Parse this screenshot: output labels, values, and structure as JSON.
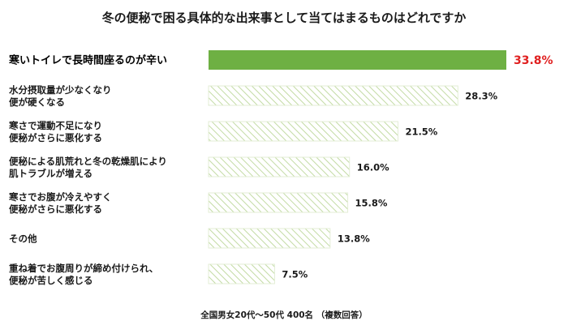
{
  "chart_data": {
    "type": "bar",
    "orientation": "horizontal",
    "title": "冬の便秘で困る具体的な出来事として当てはまるものはどれですか",
    "categories": [
      [
        "寒いトイレで長時間座るのが辛い"
      ],
      [
        "水分摂取量が少なくなり",
        "便が硬くなる"
      ],
      [
        "寒さで運動不足になり",
        "便秘がさらに悪化する"
      ],
      [
        "便秘による肌荒れと冬の乾燥肌により",
        "肌トラブルが増える"
      ],
      [
        "寒さでお腹が冷えやすく",
        "便秘がさらに悪化する"
      ],
      [
        "その他"
      ],
      [
        "重ね着でお腹周りが締め付けられ、",
        "便秘が苦しく感じる"
      ]
    ],
    "values": [
      33.8,
      28.3,
      21.5,
      16.0,
      15.8,
      13.8,
      7.5
    ],
    "value_labels": [
      "33.8%",
      "28.3%",
      "21.5%",
      "16.0%",
      "15.8%",
      "13.8%",
      "7.5%"
    ],
    "highlight_index": 0,
    "xlim": [
      0,
      33.8
    ],
    "grid": false,
    "legend": "none",
    "footnote": "全国男女20代～50代 400名 （複数回答）",
    "colors": {
      "highlight_bar": "#6eb043",
      "highlight_label": "#e02020",
      "hatch_line": "#c3dba4",
      "hatch_border": "#e3eed6",
      "text": "#1a1a1a"
    }
  }
}
